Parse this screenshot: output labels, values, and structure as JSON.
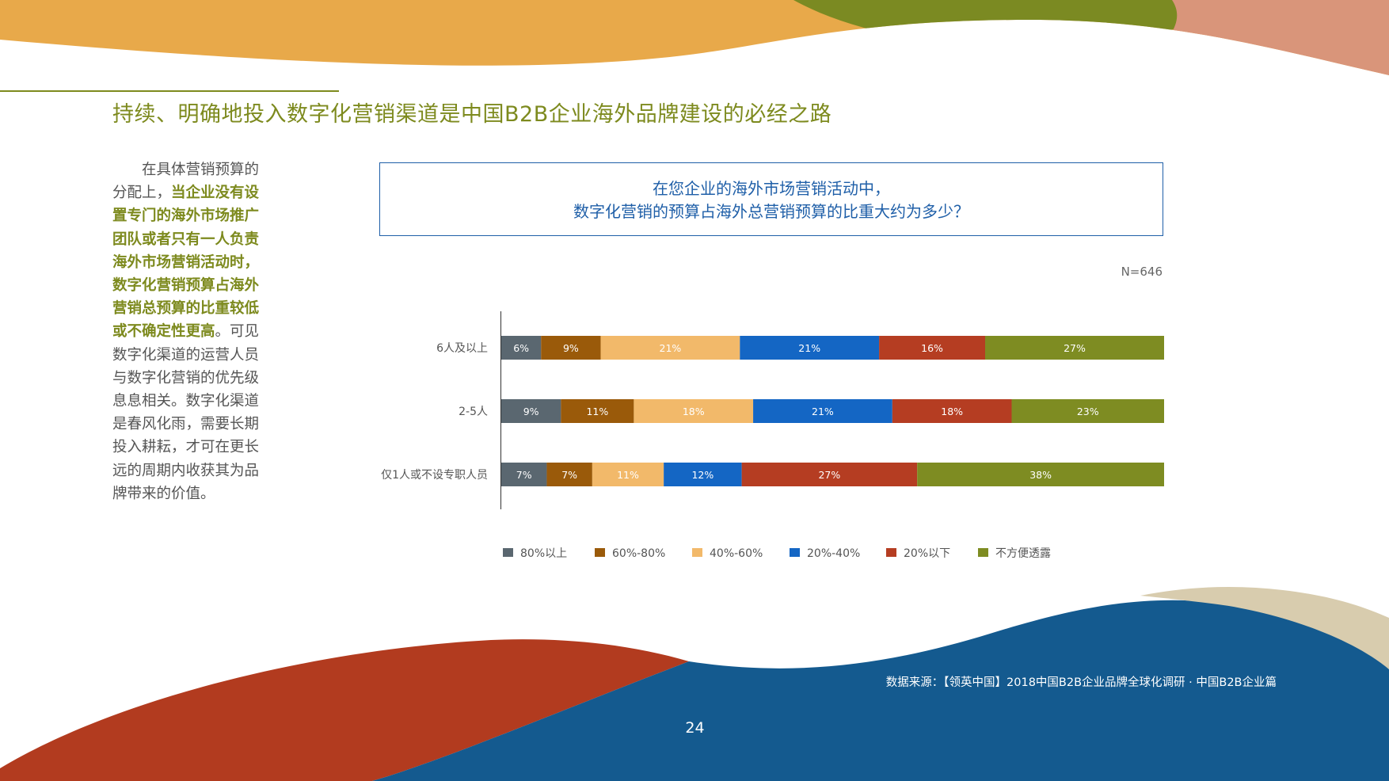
{
  "page": {
    "title": "持续、明确地投入数字化营销渠道是中国B2B企业海外品牌建设的必经之路",
    "side_text": {
      "part1": "在具体营销预算的分配上，",
      "highlight": "当企业没有设置专门的海外市场推广团队或者只有一人负责海外市场营销活动时，数字化营销预算占海外营销总预算的比重较低或不确定性更高",
      "part2": "。可见数字化渠道的运营人员与数字化营销的优先级息息相关。数字化渠道是春风化雨，需要长期投入耕耘，才可在更长远的周期内收获其为品牌带来的价值。"
    },
    "question": {
      "line1": "在您企业的海外市场营销活动中，",
      "line2": "数字化营销的预算占海外总营销预算的比重大约为多少？"
    },
    "sample_size": "N=646",
    "source": "数据来源：【领英中国】2018中国B2B企业品牌全球化调研 · 中国B2B企业篇",
    "page_number": "24"
  },
  "colors": {
    "title_green": "#7d8a1e",
    "question_blue": "#1f5fa8",
    "bg_orange": "#e8a94a",
    "bg_green": "#7b8a22",
    "bg_salmon": "#d9957a",
    "bg_red": "#b23b1f",
    "bg_blue": "#145a8f",
    "bg_beige": "#d8ccae"
  },
  "chart_data": {
    "type": "bar",
    "orientation": "horizontal",
    "stacked": true,
    "percent": true,
    "xlim": [
      0,
      100
    ],
    "categories": [
      "6人及以上",
      "2-5人",
      "仅1人或不设专职人员"
    ],
    "series": [
      {
        "name": "80%以上",
        "color": "#5a6770",
        "values": [
          6,
          9,
          7
        ],
        "labels": [
          "6%",
          "9%",
          "7%"
        ]
      },
      {
        "name": "60%-80%",
        "color": "#9a5a0a",
        "values": [
          9,
          11,
          7
        ],
        "labels": [
          "9%",
          "11%",
          "7%"
        ]
      },
      {
        "name": "40%-60%",
        "color": "#f2b96a",
        "values": [
          21,
          18,
          11
        ],
        "labels": [
          "21%",
          "18%",
          "11%"
        ]
      },
      {
        "name": "20%-40%",
        "color": "#1466c4",
        "values": [
          21,
          21,
          12
        ],
        "labels": [
          "21%",
          "21%",
          "12%"
        ]
      },
      {
        "name": "20%以下",
        "color": "#b53d22",
        "values": [
          16,
          18,
          27
        ],
        "labels": [
          "16%",
          "18%",
          "27%"
        ]
      },
      {
        "name": "不方便透露",
        "color": "#7e8c22",
        "values": [
          27,
          23,
          38
        ],
        "labels": [
          "27%",
          "23%",
          "38%"
        ]
      }
    ],
    "legend_position": "bottom",
    "grid": false
  }
}
